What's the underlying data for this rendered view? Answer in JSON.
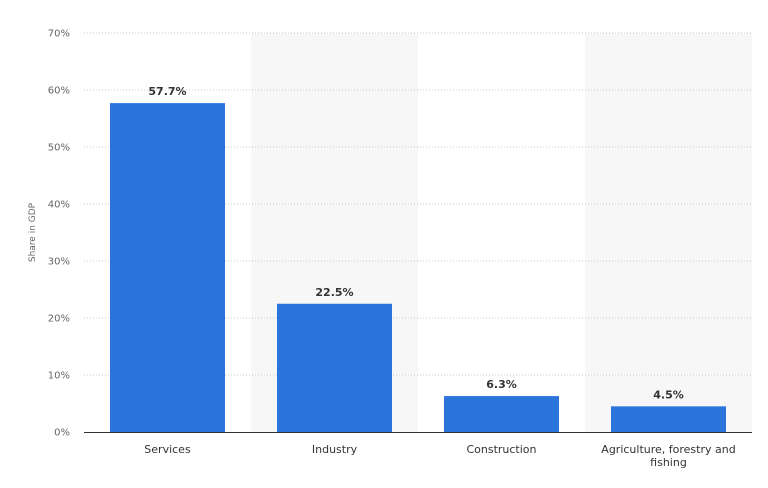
{
  "chart_data": {
    "type": "bar",
    "categories": [
      "Services",
      "Industry",
      "Construction",
      "Agriculture, forestry and fishing"
    ],
    "category_lines": [
      [
        "Services"
      ],
      [
        "Industry"
      ],
      [
        "Construction"
      ],
      [
        "Agriculture, forestry and",
        "fishing"
      ]
    ],
    "values": [
      57.7,
      22.5,
      6.3,
      4.5
    ],
    "value_labels": [
      "57.7%",
      "22.5%",
      "6.3%",
      "4.5%"
    ],
    "ylabel": "Share in GDP",
    "ylim": [
      0,
      70
    ],
    "yticks": [
      0,
      10,
      20,
      30,
      40,
      50,
      60,
      70
    ],
    "ytick_labels": [
      "0%",
      "10%",
      "20%",
      "30%",
      "40%",
      "50%",
      "60%",
      "70%"
    ],
    "grid": true,
    "legend": "none",
    "colors": {
      "bar": "#2a74dc",
      "band": "#f7f7f7",
      "grid": "#c8c8c8",
      "axis": "#333333"
    }
  }
}
